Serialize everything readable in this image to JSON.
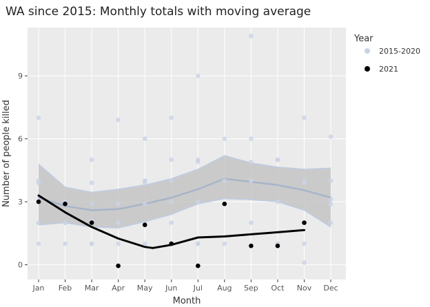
{
  "chart_data": {
    "type": "scatter",
    "title": "WA since 2015:  Monthly totals with moving average",
    "xlabel": "Month",
    "ylabel": "Number of people killed",
    "categories": [
      "Jan",
      "Feb",
      "Mar",
      "Apr",
      "May",
      "Jun",
      "Jul",
      "Aug",
      "Sep",
      "Oct",
      "Nov",
      "Dec"
    ],
    "yticks": [
      0,
      3,
      6,
      9
    ],
    "ylim": [
      -0.7,
      11.3
    ],
    "legend": {
      "title": "Year",
      "position": "right",
      "entries": [
        {
          "label": "2015-2020",
          "color": "#c9d3e6"
        },
        {
          "label": "2021",
          "color": "#000000"
        }
      ]
    },
    "grid": true,
    "colors": {
      "panel": "#ebebeb",
      "grid": "#ffffff",
      "band": "#c4c4c4",
      "band_edge": "#bfcde6",
      "avg_2015_2020": "#a7b4c9",
      "avg_2021": "#000000",
      "points_2015_2020": "#c9d3e6",
      "points_2021": "#000000"
    },
    "series": [
      {
        "name": "2015-2020",
        "kind": "points",
        "points": [
          [
            1,
            7
          ],
          [
            1,
            4
          ],
          [
            1,
            3.9
          ],
          [
            1,
            3
          ],
          [
            1,
            2
          ],
          [
            1,
            1
          ],
          [
            2,
            3
          ],
          [
            2,
            3
          ],
          [
            2,
            2
          ],
          [
            2,
            2
          ],
          [
            2,
            1
          ],
          [
            3,
            5
          ],
          [
            3,
            3.9
          ],
          [
            3,
            2.9
          ],
          [
            3,
            2.1
          ],
          [
            3,
            1
          ],
          [
            3,
            1
          ],
          [
            4,
            6.9
          ],
          [
            4,
            2.9
          ],
          [
            4,
            2
          ],
          [
            4,
            2
          ],
          [
            4,
            1
          ],
          [
            5,
            6
          ],
          [
            5,
            4
          ],
          [
            5,
            4
          ],
          [
            5,
            3.9
          ],
          [
            5,
            2.9
          ],
          [
            5,
            2
          ],
          [
            5,
            1
          ],
          [
            6,
            7
          ],
          [
            6,
            5
          ],
          [
            6,
            4
          ],
          [
            6,
            3
          ],
          [
            6,
            2
          ],
          [
            7,
            9
          ],
          [
            7,
            5
          ],
          [
            7,
            4.9
          ],
          [
            7,
            3
          ],
          [
            7,
            1
          ],
          [
            7,
            1
          ],
          [
            8,
            6
          ],
          [
            8,
            4
          ],
          [
            8,
            1
          ],
          [
            9,
            10.9
          ],
          [
            9,
            6
          ],
          [
            9,
            4.9
          ],
          [
            9,
            4
          ],
          [
            9,
            2
          ],
          [
            10,
            5
          ],
          [
            10,
            5
          ],
          [
            10,
            3
          ],
          [
            10,
            1
          ],
          [
            10,
            1
          ],
          [
            11,
            7
          ],
          [
            11,
            4
          ],
          [
            11,
            3.9
          ],
          [
            11,
            1
          ],
          [
            11,
            0.1
          ],
          [
            12,
            6.1
          ],
          [
            12,
            4
          ],
          [
            12,
            3.1
          ],
          [
            12,
            2.9
          ],
          [
            12,
            2
          ]
        ]
      },
      {
        "name": "2021",
        "kind": "points",
        "points": [
          [
            1,
            3
          ],
          [
            2,
            2.9
          ],
          [
            3,
            2
          ],
          [
            4,
            -0.05
          ],
          [
            5,
            1.9
          ],
          [
            6,
            1
          ],
          [
            7,
            -0.05
          ],
          [
            8,
            2.9
          ],
          [
            9,
            0.9
          ],
          [
            10,
            0.9
          ],
          [
            11,
            2
          ]
        ]
      },
      {
        "name": "2015-2020 moving average",
        "kind": "line",
        "x": [
          1,
          2,
          3,
          4,
          5,
          6,
          7,
          8,
          9,
          10,
          11,
          12
        ],
        "values": [
          3.2,
          2.8,
          2.6,
          2.65,
          2.9,
          3.2,
          3.6,
          4.1,
          3.95,
          3.8,
          3.55,
          3.2
        ]
      },
      {
        "name": "2015-2020 confidence band",
        "kind": "band",
        "x": [
          1,
          2,
          3,
          4,
          5,
          6,
          7,
          8,
          9,
          10,
          11,
          12
        ],
        "lower": [
          1.9,
          2.0,
          1.8,
          1.75,
          2.05,
          2.4,
          2.9,
          3.15,
          3.1,
          3.0,
          2.6,
          1.8
        ],
        "upper": [
          4.8,
          3.7,
          3.45,
          3.6,
          3.8,
          4.1,
          4.55,
          5.2,
          4.85,
          4.65,
          4.55,
          4.6
        ]
      },
      {
        "name": "2021 moving average",
        "kind": "line",
        "x": [
          1,
          2,
          3,
          4,
          5,
          5.3,
          6,
          7,
          8,
          9,
          10,
          11
        ],
        "values": [
          3.3,
          2.5,
          1.8,
          1.25,
          0.85,
          0.8,
          0.95,
          1.3,
          1.35,
          1.45,
          1.55,
          1.65
        ]
      }
    ]
  }
}
